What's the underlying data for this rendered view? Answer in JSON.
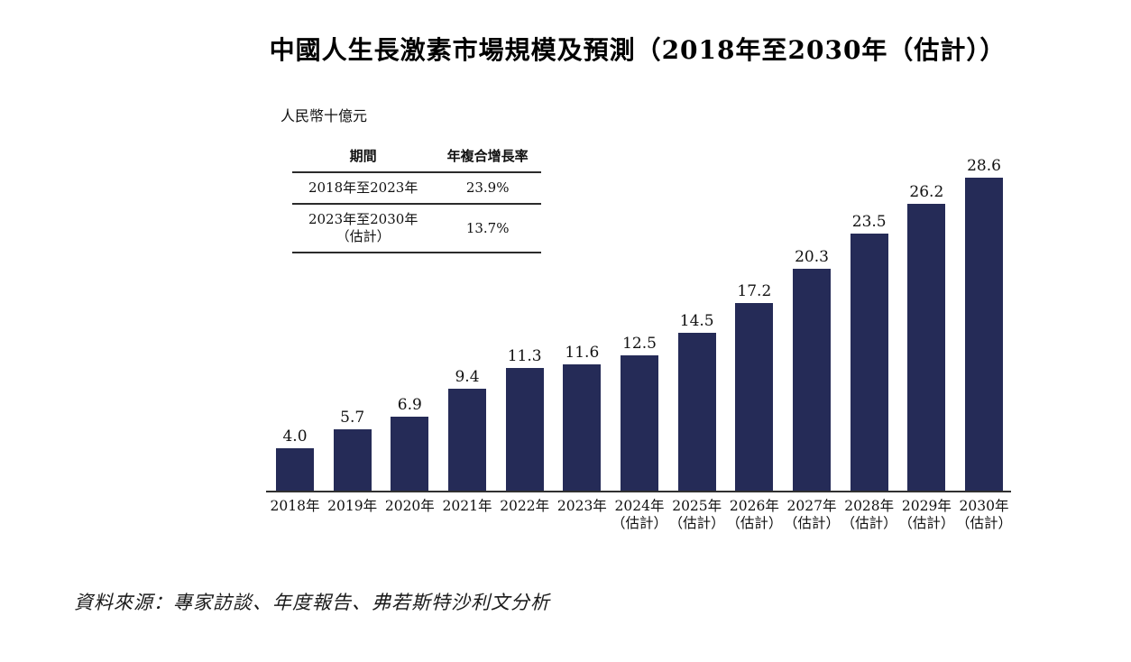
{
  "title": "中國人生長激素市場規模及預測（2018年至2030年（估計））",
  "unit_label": "人民幣十億元",
  "cagr_table": {
    "headers": [
      "期間",
      "年複合增長率"
    ],
    "rows": [
      {
        "period_lines": [
          "2018年至2023年"
        ],
        "cagr": "23.9%"
      },
      {
        "period_lines": [
          "2023年至2030年",
          "（估計）"
        ],
        "cagr": "13.7%"
      }
    ]
  },
  "chart_data": {
    "type": "bar",
    "title": "中國人生長激素市場規模及預測（2018年至2030年（估計））",
    "ylabel": "人民幣十億元",
    "xlabel": "",
    "categories": [
      "2018年",
      "2019年",
      "2020年",
      "2021年",
      "2022年",
      "2023年",
      "2024年（估計）",
      "2025年（估計）",
      "2026年（估計）",
      "2027年（估計）",
      "2028年（估計）",
      "2029年（估計）",
      "2030年（估計）"
    ],
    "values": [
      4.0,
      5.7,
      6.9,
      9.4,
      11.3,
      11.6,
      12.5,
      14.5,
      17.2,
      20.3,
      23.5,
      26.2,
      28.6
    ],
    "ylim": [
      0,
      30
    ],
    "grid": false,
    "legend_position": "none",
    "estimate_suffix": "（估計）"
  },
  "source": "資料來源：專家訪談、年度報告、弗若斯特沙利文分析",
  "colors": {
    "bar": "#252b57",
    "axis": "#303030",
    "text": "#111111"
  }
}
